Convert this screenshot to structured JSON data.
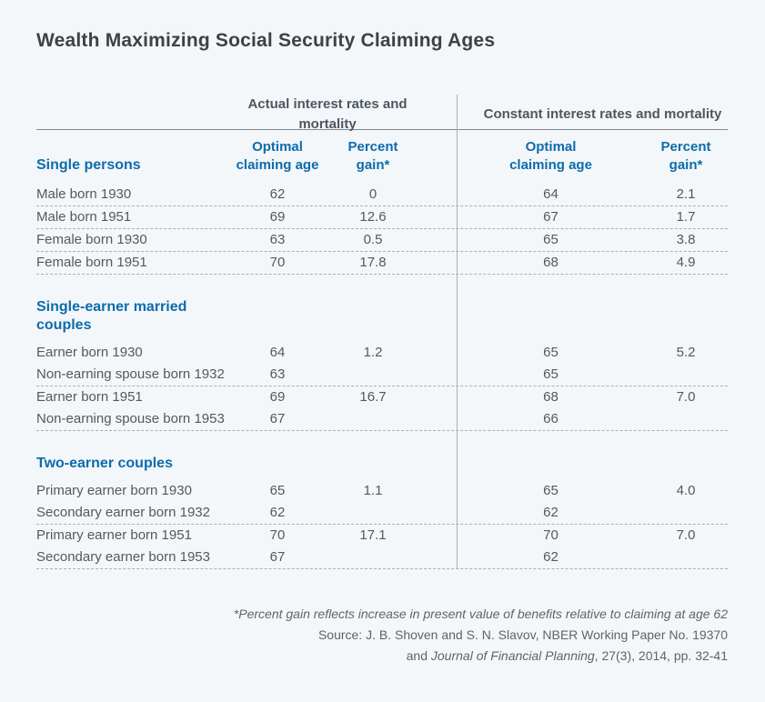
{
  "page": {
    "colors": {
      "background": "#f3f7fa",
      "accent_blue": "#0d6cab",
      "title_gray": "#3d4247",
      "text_gray": "#54595e",
      "rule_gray": "#81888e"
    }
  },
  "chart_data": {
    "type": "table",
    "title": "Wealth Maximizing Social Security Claiming Ages",
    "column_groups": [
      {
        "label": "Actual interest rates and mortality",
        "columns": [
          "Optimal\nclaiming age",
          "Percent\ngain*"
        ]
      },
      {
        "label": "Constant interest rates and mortality",
        "columns": [
          "Optimal\nclaiming age",
          "Percent\ngain*"
        ]
      }
    ],
    "sections": [
      {
        "header": "Single persons",
        "row_groups": [
          [
            {
              "label": "Male born 1930",
              "actual_age": "62",
              "actual_gain": "0",
              "constant_age": "64",
              "constant_gain": "2.1"
            }
          ],
          [
            {
              "label": "Male born 1951",
              "actual_age": "69",
              "actual_gain": "12.6",
              "constant_age": "67",
              "constant_gain": "1.7"
            }
          ],
          [
            {
              "label": "Female born 1930",
              "actual_age": "63",
              "actual_gain": "0.5",
              "constant_age": "65",
              "constant_gain": "3.8"
            }
          ],
          [
            {
              "label": "Female born 1951",
              "actual_age": "70",
              "actual_gain": "17.8",
              "constant_age": "68",
              "constant_gain": "4.9"
            }
          ]
        ]
      },
      {
        "header": "Single-earner married couples",
        "row_groups": [
          [
            {
              "label": "Earner born 1930",
              "actual_age": "64",
              "actual_gain": "1.2",
              "constant_age": "65",
              "constant_gain": "5.2"
            },
            {
              "label": "Non-earning spouse born 1932",
              "actual_age": "63",
              "actual_gain": "",
              "constant_age": "65",
              "constant_gain": ""
            }
          ],
          [
            {
              "label": "Earner born 1951",
              "actual_age": "69",
              "actual_gain": "16.7",
              "constant_age": "68",
              "constant_gain": "7.0"
            },
            {
              "label": "Non-earning spouse born 1953",
              "actual_age": "67",
              "actual_gain": "",
              "constant_age": "66",
              "constant_gain": ""
            }
          ]
        ]
      },
      {
        "header": "Two-earner couples",
        "row_groups": [
          [
            {
              "label": "Primary earner born 1930",
              "actual_age": "65",
              "actual_gain": "1.1",
              "constant_age": "65",
              "constant_gain": "4.0"
            },
            {
              "label": "Secondary earner born 1932",
              "actual_age": "62",
              "actual_gain": "",
              "constant_age": "62",
              "constant_gain": ""
            }
          ],
          [
            {
              "label": "Primary earner born 1951",
              "actual_age": "70",
              "actual_gain": "17.1",
              "constant_age": "70",
              "constant_gain": "7.0"
            },
            {
              "label": "Secondary earner born 1953",
              "actual_age": "67",
              "actual_gain": "",
              "constant_age": "62",
              "constant_gain": ""
            }
          ]
        ]
      }
    ],
    "footnote": "*Percent gain reflects increase in present value of benefits relative to claiming at age 62",
    "source_line1": "Source: J. B. Shoven and S. N. Slavov, NBER Working Paper No. 19370",
    "source_line2_prefix": "and ",
    "source_line2_italic": "Journal of Financial Planning",
    "source_line2_suffix": ", 27(3), 2014, pp. 32-41"
  }
}
